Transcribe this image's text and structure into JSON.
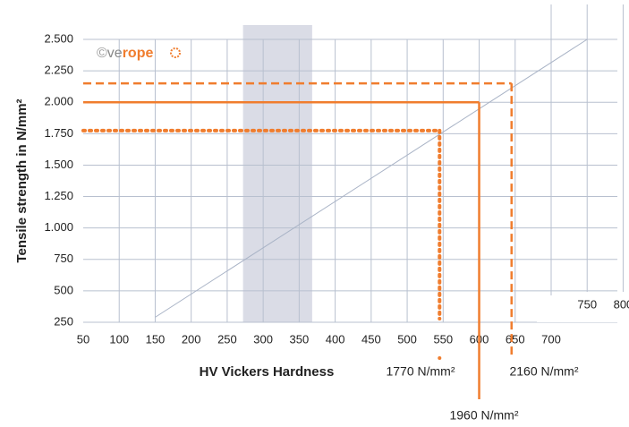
{
  "chart_data": {
    "type": "line",
    "watermark": [
      "©",
      "ve",
      "rope"
    ],
    "ylabel": "Tensile strength in N/mm²",
    "xlabel": "HV Vickers Hardness",
    "xlim": [
      50,
      800
    ],
    "ylim": [
      250,
      2500
    ],
    "xticks": [
      50,
      100,
      150,
      200,
      250,
      300,
      350,
      400,
      450,
      500,
      550,
      600,
      650,
      700
    ],
    "upper_xticks": [
      750,
      800
    ],
    "yticks": [
      {
        "value": 250,
        "label": "250"
      },
      {
        "value": 500,
        "label": "500"
      },
      {
        "value": 750,
        "label": "750"
      },
      {
        "value": 1000,
        "label": "1.000"
      },
      {
        "value": 1250,
        "label": "1.250"
      },
      {
        "value": 1500,
        "label": "1.500"
      },
      {
        "value": 1750,
        "label": "1.750"
      },
      {
        "value": 2000,
        "label": "2.000"
      },
      {
        "value": 2250,
        "label": "2.250"
      },
      {
        "value": 2500,
        "label": "2.500"
      }
    ],
    "grid": true,
    "shaded_range": [
      272,
      368
    ],
    "series": [
      {
        "name": "conversion",
        "color": "#a9b3c6",
        "x": [
          150,
          750
        ],
        "values": [
          290,
          2500
        ]
      }
    ],
    "references": [
      {
        "label": "1770 N/mm²",
        "x": 545,
        "y": 1775,
        "style": "dotted",
        "color": "#f07d2e"
      },
      {
        "label": "1960 N/mm²",
        "x": 600,
        "y": 2000,
        "style": "solid",
        "color": "#f07d2e"
      },
      {
        "label": "2160 N/mm²",
        "x": 645,
        "y": 2150,
        "style": "dashed",
        "color": "#f07d2e"
      }
    ]
  }
}
